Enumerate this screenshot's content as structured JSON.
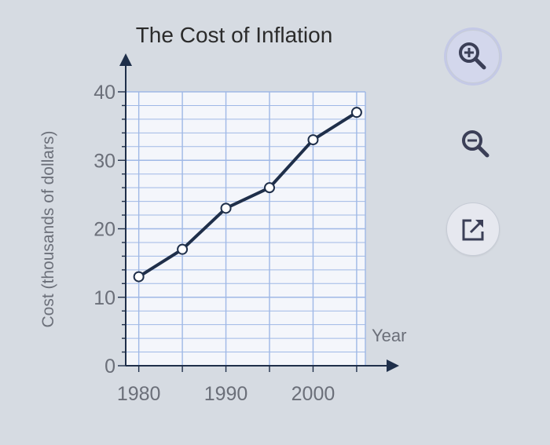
{
  "chart_data": {
    "type": "line",
    "title": "The Cost of Inflation",
    "xlabel": "Year",
    "ylabel": "Cost (thousands of dollars)",
    "x": [
      1980,
      1985,
      1990,
      1995,
      2000,
      2005
    ],
    "y": [
      13,
      17,
      23,
      26,
      33,
      37
    ],
    "xlim": [
      1980,
      2005
    ],
    "ylim": [
      0,
      40
    ],
    "xticks": [
      1980,
      1990,
      2000
    ],
    "yticks": [
      0,
      10,
      20,
      30,
      40
    ],
    "grid": true,
    "marker": "open-circle"
  },
  "toolbar": {
    "zoom_in_icon": "zoom-in-icon",
    "zoom_out_icon": "zoom-out-icon",
    "popout_icon": "external-link-icon"
  },
  "colors": {
    "background": "#d6dbe2",
    "plot_background": "#f4f6fb",
    "grid": "#9fb8e6",
    "line": "#1f2f4a",
    "text": "#2b2b2b",
    "axis_text": "#6b6f79",
    "icon": "#3b3f57"
  }
}
